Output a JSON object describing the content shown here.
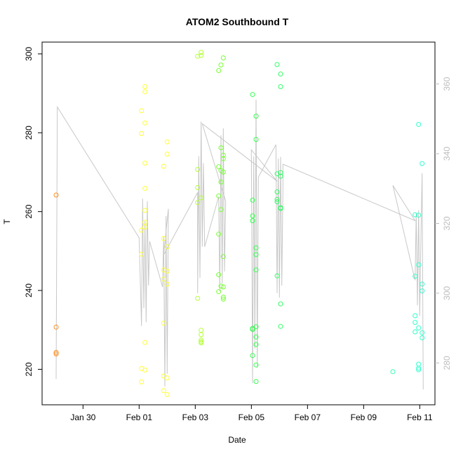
{
  "chart_data": {
    "type": "scatter",
    "title": "ATOM2 Southbound T",
    "xlabel": "Date",
    "ylabel": "T",
    "xlim": [
      "2016-01-28T13:00",
      "2016-02-11T13:00"
    ],
    "ylim": [
      211,
      303
    ],
    "y2lim": [
      268,
      372
    ],
    "x_ticks": [
      {
        "date": "2016-01-30",
        "label": "Jan 30"
      },
      {
        "date": "2016-02-01",
        "label": "Feb 01"
      },
      {
        "date": "2016-02-03",
        "label": "Feb 03"
      },
      {
        "date": "2016-02-05",
        "label": "Feb 05"
      },
      {
        "date": "2016-02-07",
        "label": "Feb 07"
      },
      {
        "date": "2016-02-09",
        "label": "Feb 09"
      },
      {
        "date": "2016-02-11",
        "label": "Feb 11"
      }
    ],
    "y_ticks": [
      220,
      240,
      260,
      280,
      300
    ],
    "y2_ticks": [
      280,
      300,
      320,
      340,
      360
    ],
    "grid": false,
    "legend": "none",
    "point_colors": [
      "#ff8c1a",
      "#ffff33",
      "#b3ff33",
      "#4dff33",
      "#33ff4d",
      "#33ff80",
      "#33ffb3",
      "#33ffcc"
    ],
    "line_color": "#c8c8c8",
    "point_series": [
      {
        "color": "#ff8c1a",
        "points": [
          [
            "2016-01-29T01:00",
            264.2
          ],
          [
            "2016-01-29T01:00",
            230.7
          ],
          [
            "2016-01-29T01:00",
            224.3
          ],
          [
            "2016-01-29T01:00",
            223.9
          ]
        ]
      },
      {
        "color": "#ffff33",
        "points": [
          [
            "2016-02-01T02:00",
            285.6
          ],
          [
            "2016-02-01T02:00",
            279.8
          ],
          [
            "2016-02-01T02:00",
            255.3
          ],
          [
            "2016-02-01T02:00",
            249.2
          ],
          [
            "2016-02-01T02:00",
            220.2
          ],
          [
            "2016-02-01T02:00",
            216.8
          ],
          [
            "2016-02-01T05:00",
            291.7
          ],
          [
            "2016-02-01T05:00",
            290.4
          ],
          [
            "2016-02-01T05:00",
            282.5
          ],
          [
            "2016-02-01T05:00",
            272.3
          ],
          [
            "2016-02-01T05:00",
            265.9
          ],
          [
            "2016-02-01T05:00",
            260.3
          ],
          [
            "2016-02-01T05:00",
            257.3
          ],
          [
            "2016-02-01T05:00",
            256.1
          ],
          [
            "2016-02-01T05:00",
            226.8
          ],
          [
            "2016-02-01T05:00",
            219.8
          ],
          [
            "2016-02-01T21:00",
            271.5
          ],
          [
            "2016-02-01T21:00",
            253.2
          ],
          [
            "2016-02-01T21:00",
            245.2
          ],
          [
            "2016-02-01T21:00",
            242.9
          ],
          [
            "2016-02-01T21:00",
            231.7
          ],
          [
            "2016-02-01T21:00",
            218.3
          ],
          [
            "2016-02-01T21:00",
            214.6
          ],
          [
            "2016-02-02T00:00",
            277.7
          ],
          [
            "2016-02-02T00:00",
            274.6
          ],
          [
            "2016-02-02T00:00",
            251.1
          ],
          [
            "2016-02-02T00:00",
            244.9
          ],
          [
            "2016-02-02T00:00",
            241.6
          ],
          [
            "2016-02-02T00:00",
            217.8
          ],
          [
            "2016-02-02T00:00",
            213.6
          ]
        ]
      },
      {
        "color": "#b3ff33",
        "points": [
          [
            "2016-02-03T02:00",
            299.4
          ],
          [
            "2016-02-03T02:00",
            270.7
          ],
          [
            "2016-02-03T02:00",
            266.1
          ],
          [
            "2016-02-03T02:00",
            262.3
          ],
          [
            "2016-02-03T02:00",
            238.0
          ],
          [
            "2016-02-03T05:00",
            300.4
          ],
          [
            "2016-02-03T05:00",
            299.6
          ],
          [
            "2016-02-03T05:00",
            263.5
          ],
          [
            "2016-02-03T05:00",
            229.9
          ],
          [
            "2016-02-03T05:00",
            228.8
          ],
          [
            "2016-02-03T05:00",
            227.4
          ],
          [
            "2016-02-03T05:00",
            227.0
          ],
          [
            "2016-02-03T05:00",
            226.7
          ]
        ]
      },
      {
        "color": "#77ff33",
        "points": [
          [
            "2016-02-03T20:00",
            295.8
          ],
          [
            "2016-02-03T20:00",
            271.4
          ],
          [
            "2016-02-03T20:00",
            264.0
          ],
          [
            "2016-02-03T20:00",
            254.3
          ],
          [
            "2016-02-03T20:00",
            244.0
          ],
          [
            "2016-02-03T20:00",
            239.7
          ],
          [
            "2016-02-03T22:00",
            297.2
          ],
          [
            "2016-02-03T22:00",
            276.2
          ],
          [
            "2016-02-03T22:00",
            270.4
          ],
          [
            "2016-02-03T22:00",
            267.5
          ],
          [
            "2016-02-03T22:00",
            260.5
          ],
          [
            "2016-02-03T22:00",
            241.1
          ],
          [
            "2016-02-04T00:00",
            299.0
          ],
          [
            "2016-02-04T00:00",
            274.3
          ],
          [
            "2016-02-04T00:00",
            273.4
          ],
          [
            "2016-02-04T00:00",
            270.0
          ],
          [
            "2016-02-04T00:00",
            248.6
          ],
          [
            "2016-02-04T00:00",
            240.9
          ],
          [
            "2016-02-04T00:00",
            238.3
          ],
          [
            "2016-02-04T00:00",
            237.8
          ]
        ]
      },
      {
        "color": "#33ff4d",
        "points": [
          [
            "2016-02-05T01:00",
            289.7
          ],
          [
            "2016-02-05T01:00",
            262.9
          ],
          [
            "2016-02-05T01:00",
            258.9
          ],
          [
            "2016-02-05T01:00",
            257.7
          ],
          [
            "2016-02-05T01:00",
            230.4
          ],
          [
            "2016-02-05T01:00",
            230.1
          ],
          [
            "2016-02-05T01:00",
            223.5
          ],
          [
            "2016-02-05T04:00",
            284.2
          ],
          [
            "2016-02-05T04:00",
            278.3
          ],
          [
            "2016-02-05T04:00",
            250.8
          ],
          [
            "2016-02-05T04:00",
            249.1
          ],
          [
            "2016-02-05T04:00",
            245.2
          ],
          [
            "2016-02-05T04:00",
            230.8
          ],
          [
            "2016-02-05T04:00",
            228.2
          ],
          [
            "2016-02-05T04:00",
            226.3
          ],
          [
            "2016-02-05T04:00",
            221.1
          ],
          [
            "2016-02-05T04:00",
            216.9
          ]
        ]
      },
      {
        "color": "#33ff66",
        "points": [
          [
            "2016-02-05T22:00",
            297.3
          ],
          [
            "2016-02-05T22:00",
            269.6
          ],
          [
            "2016-02-05T22:00",
            265.0
          ],
          [
            "2016-02-05T22:00",
            263.1
          ],
          [
            "2016-02-05T22:00",
            262.5
          ],
          [
            "2016-02-05T22:00",
            243.7
          ],
          [
            "2016-02-06T01:00",
            294.9
          ],
          [
            "2016-02-06T01:00",
            291.7
          ],
          [
            "2016-02-06T01:00",
            269.9
          ],
          [
            "2016-02-06T01:00",
            269.0
          ],
          [
            "2016-02-06T01:00",
            261.0
          ],
          [
            "2016-02-06T01:00",
            260.8
          ],
          [
            "2016-02-06T01:00",
            236.6
          ],
          [
            "2016-02-06T01:00",
            230.9
          ]
        ]
      },
      {
        "color": "#33ffb3",
        "points": [
          [
            "2016-02-10T01:00",
            219.4
          ]
        ]
      },
      {
        "color": "#33ffcc",
        "points": [
          [
            "2016-02-10T20:00",
            259.2
          ],
          [
            "2016-02-10T20:00",
            243.6
          ],
          [
            "2016-02-10T20:00",
            233.6
          ],
          [
            "2016-02-10T20:00",
            231.9
          ],
          [
            "2016-02-10T20:00",
            229.5
          ],
          [
            "2016-02-10T23:00",
            282.1
          ],
          [
            "2016-02-10T23:00",
            259.1
          ],
          [
            "2016-02-10T23:00",
            246.5
          ],
          [
            "2016-02-10T23:00",
            230.5
          ],
          [
            "2016-02-10T23:00",
            221.3
          ],
          [
            "2016-02-10T23:00",
            220.3
          ],
          [
            "2016-02-10T23:00",
            219.9
          ],
          [
            "2016-02-11T02:00",
            272.2
          ],
          [
            "2016-02-11T02:00",
            241.6
          ],
          [
            "2016-02-11T02:00",
            239.9
          ],
          [
            "2016-02-11T02:00",
            229.3
          ],
          [
            "2016-02-11T02:00",
            228.0
          ]
        ]
      }
    ],
    "line_series": {
      "axis": "right",
      "color": "#c8c8c8",
      "points": [
        [
          "2016-01-29T01:00",
          275.4
        ],
        [
          "2016-01-29T02:00",
          353.4
        ],
        [
          "2016-02-01T00:00",
          315.9
        ],
        [
          "2016-02-01T02:00",
          290.6
        ],
        [
          "2016-02-01T03:00",
          327.1
        ],
        [
          "2016-02-01T04:00",
          295.7
        ],
        [
          "2016-02-01T05:00",
          320.7
        ],
        [
          "2016-02-01T06:00",
          291.7
        ],
        [
          "2016-02-01T07:00",
          326.4
        ],
        [
          "2016-02-01T08:00",
          302.2
        ],
        [
          "2016-02-01T09:00",
          314.9
        ],
        [
          "2016-02-01T20:00",
          301.8
        ],
        [
          "2016-02-01T21:00",
          316.2
        ],
        [
          "2016-02-01T22:00",
          273.3
        ],
        [
          "2016-02-01T23:00",
          322.1
        ],
        [
          "2016-02-02T00:00",
          276.9
        ],
        [
          "2016-02-02T01:00",
          324.2
        ],
        [
          "2016-02-01T21:00",
          311.0
        ],
        [
          "2016-02-03T02:00",
          328.9
        ],
        [
          "2016-02-03T02:00",
          300.0
        ],
        [
          "2016-02-03T03:00",
          339.3
        ],
        [
          "2016-02-03T04:00",
          304.4
        ],
        [
          "2016-02-03T05:00",
          349.2
        ],
        [
          "2016-02-03T06:00",
          313.3
        ],
        [
          "2016-02-03T07:00",
          337.3
        ],
        [
          "2016-02-03T08:00",
          313.3
        ],
        [
          "2016-02-03T20:00",
          327.7
        ],
        [
          "2016-02-03T21:00",
          300.5
        ],
        [
          "2016-02-03T22:00",
          345.3
        ],
        [
          "2016-02-03T23:00",
          302.8
        ],
        [
          "2016-02-04T00:00",
          347.3
        ],
        [
          "2016-02-04T01:00",
          306.2
        ],
        [
          "2016-02-04T02:00",
          326.4
        ],
        [
          "2016-02-03T06:00",
          348.6
        ],
        [
          "2016-02-05T22:00",
          332.1
        ],
        [
          "2016-02-05T00:00",
          341.1
        ],
        [
          "2016-02-05T01:00",
          274.2
        ],
        [
          "2016-02-05T02:00",
          339.3
        ],
        [
          "2016-02-05T03:00",
          284.1
        ],
        [
          "2016-02-05T04:00",
          355.5
        ],
        [
          "2016-02-05T05:00",
          278.6
        ],
        [
          "2016-02-05T06:00",
          333.3
        ],
        [
          "2016-02-05T21:00",
          342.6
        ],
        [
          "2016-02-05T22:00",
          300.0
        ],
        [
          "2016-02-05T23:00",
          338.6
        ],
        [
          "2016-02-06T00:00",
          298.7
        ],
        [
          "2016-02-06T01:00",
          339.1
        ],
        [
          "2016-02-06T02:00",
          302.2
        ],
        [
          "2016-02-06T03:00",
          330.1
        ],
        [
          "2016-02-06T03:00",
          337.0
        ],
        [
          "2016-02-10T20:00",
          320.8
        ],
        [
          "2016-02-10T01:00",
          330.9
        ],
        [
          "2016-02-10T20:00",
          303.7
        ],
        [
          "2016-02-10T21:00",
          322.8
        ],
        [
          "2016-02-10T22:00",
          296.5
        ],
        [
          "2016-02-10T23:00",
          323.8
        ],
        [
          "2016-02-11T00:00",
          293.5
        ],
        [
          "2016-02-11T01:00",
          316.0
        ],
        [
          "2016-02-11T02:00",
          334.4
        ],
        [
          "2016-02-11T03:00",
          272.4
        ]
      ]
    }
  }
}
